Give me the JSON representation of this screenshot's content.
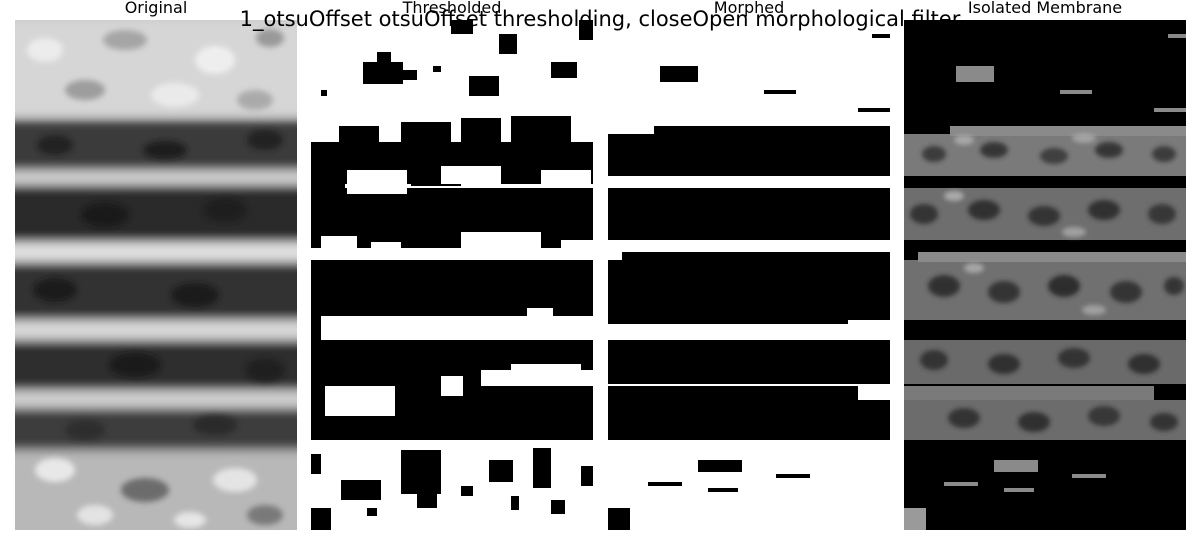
{
  "figure": {
    "suptitle": "1_otsuOffset otsuOffset thresholding, closeOpen morphological filter"
  },
  "panels": [
    {
      "title": "Original",
      "image": "grayscale-membrane-texture"
    },
    {
      "title": "Thresholded",
      "image": "binary-threshold-mask"
    },
    {
      "title": "Morphed",
      "image": "binary-morphed-mask"
    },
    {
      "title": "Isolated Membrane",
      "image": "masked-grayscale-membrane"
    }
  ]
}
